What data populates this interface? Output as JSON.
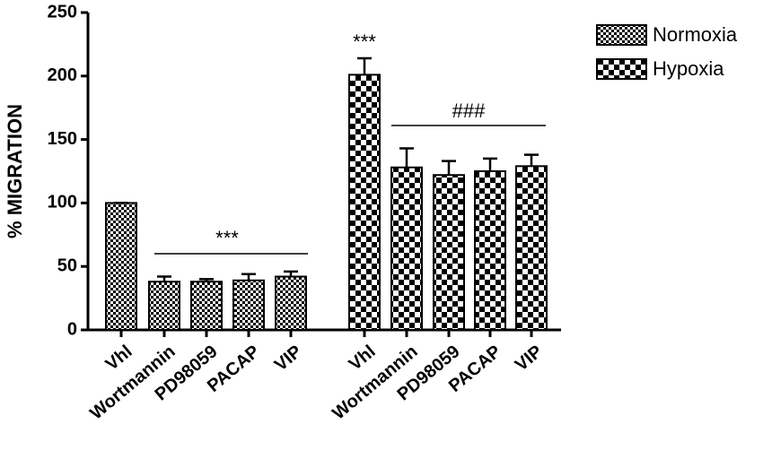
{
  "chart_data": {
    "type": "bar",
    "y_label": "% MIGRATION",
    "categories": [
      "Vhl",
      "Wortmannin",
      "PD98059",
      "PACAP",
      "VIP",
      "Vhl",
      "Wortmannin",
      "PD98059",
      "PACAP",
      "VIP"
    ],
    "series": [
      {
        "name": "Normoxia",
        "color": "#000000",
        "values": [
          100,
          38,
          38,
          39,
          42,
          null,
          null,
          null,
          null,
          null
        ],
        "errors": [
          0,
          4,
          2,
          5,
          4,
          null,
          null,
          null,
          null,
          null
        ]
      },
      {
        "name": "Hypoxia",
        "color": "#000000",
        "values": [
          null,
          null,
          null,
          null,
          null,
          201,
          128,
          122,
          125,
          129
        ],
        "errors": [
          null,
          null,
          null,
          null,
          null,
          13,
          15,
          11,
          10,
          9
        ]
      }
    ],
    "annotations": [
      "***",
      "***",
      "###"
    ],
    "ylim": [
      0,
      250
    ],
    "yticks": [
      0,
      50,
      100,
      150,
      200,
      250
    ],
    "legend": "top-right"
  }
}
